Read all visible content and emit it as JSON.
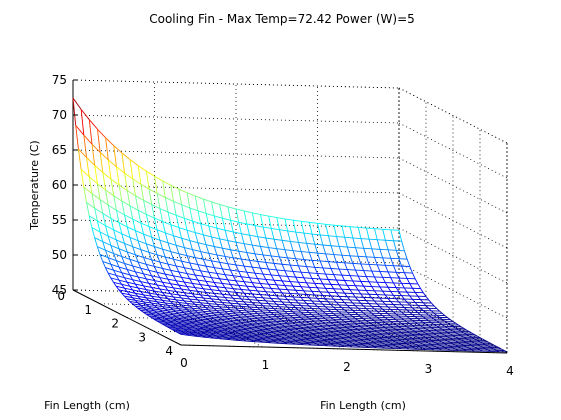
{
  "title": "Cooling Fin - Max Temp=72.42 Power (W)=5",
  "chart_data": {
    "type": "surface",
    "title": "Cooling Fin - Max Temp=72.42 Power (W)=5",
    "xlabel": "Fin Length (cm)",
    "ylabel": "Fin Length (cm)",
    "zlabel": "Temperature (C)",
    "xlim": [
      0,
      4
    ],
    "ylim": [
      0,
      4
    ],
    "zlim": [
      45,
      75
    ],
    "x_ticks": [
      "0",
      "1",
      "2",
      "3",
      "4"
    ],
    "y_ticks": [
      "0",
      "1",
      "2",
      "3",
      "4"
    ],
    "z_ticks": [
      "45",
      "50",
      "55",
      "60",
      "65",
      "70",
      "75"
    ],
    "max_temp": 72.42,
    "min_temp": 45.1,
    "power_w": 5,
    "grid": true,
    "colormap": "jet",
    "mesh_resolution": 40
  }
}
